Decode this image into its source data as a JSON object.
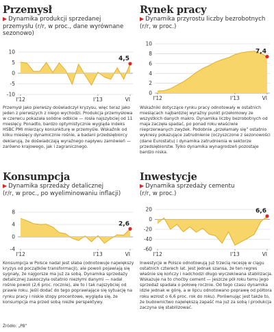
{
  "panels": [
    {
      "title": "Przemysł",
      "subtitle_lines": [
        "Dynamika produkcji sprzedanej",
        "przemysłu (r/r, w proc., dane wyrównane",
        "sezonowo)"
      ],
      "description": "Przemysł jako pierwszy doświadczył kryzysu, więc teraz jako jeden z pierwszych z niego wychodzi. Produkcja przemysłowa w czerwcu pokazała solidne odbicie — rosła najszybciej od 11 miesięcy. Ponadto, bardzo optymistycznie wygląda indeks HSBC PMI mierzący koniunkturę w przemyśle. Wskaźnik od kilku miesięcy dynamicznie rośnie, a badani przedsiębiorcy deklarują, że doświadczają wyraźnego napływu zamówień — zarówno krajowego, jak i zagranicznego.",
      "end_label": "4,5"
    },
    {
      "title": "Rynek pracy",
      "subtitle_lines": [
        "Dynamika przyrostu liczby bezrobotnych",
        "(r/r, w proc.)"
      ],
      "description": "Wskaźniki dotyczące rynku pracy odnotowały w ostatnich miesiącach najbardziej wyraźny punkt przełomowy ze wszystkich danych makro. Dynamika liczby bezrobotnych od maja zaczęła spadać, po ponad roku właściwie nieprzerwanych zwyżek. Podobnie „przełamały się” ostatnio wykresy pokazujące zatrudnienie (oczyszczone z sezonowości (dane Eurostatu) i dynamika zatrudnienia w sektorze przedsiębiorstw. Tylko dynamika wynagrodzeń pozostaje bardzo niska.",
      "end_label": "7,4"
    },
    {
      "title": "Konsumpcja",
      "subtitle_lines": [
        "Dynamika sprzedaży detalicznej",
        "(r/r, w proc., po wyeliminowaniu inflacji)"
      ],
      "description": "Konsumpcja w Polsce nadal jest słaba (odnotowuje największy kryzys od początków transformacji), ale powoli pojawiają się sygnały, że najgorsze ma już za sobą. Dynamika sprzedaży detalicznej zaskoczyła ostatnio niezłymi danymi — nadal rośnie powoli (2,6 proc. rocznie), ale to i tak najszybciej od prawie roku. Jeśli dodać do tego poprawiające się sytuację na rynku pracy i niskie stopy procentowe, wygląda się, że konsumpcja ma przed sobą niezłe perspektywy.",
      "source": "Źródło: „PB”",
      "end_label": "2,6"
    },
    {
      "title": "Inwestycje",
      "subtitle_lines": [
        "Dynamika sprzedaży cementu",
        "(r/r, w proc.)"
      ],
      "description": "Inwestycje w Polsce odnotowują już trzecią recesję w ciągu ostatnich czterech lat. Jest jednak szansa, że ten regres właśnie się kończy i nadchodzi długo wyczekiwana stabilizacja. Wskazuje na to choćby cement — jeszcze pół roku temu jego sprzedaż spadała o połowę rocznie. Od tego czasu dynamika idzie jednak w górę, a w lipcu odnotowano poprawę od półtora roku wzrost o 6,6 proc. rok do roku). Porównując jest także to, że budownictwo największą zapaść ma już za sobą i produkcja zaczyna się stabilizować.",
      "end_label": "6,6"
    }
  ],
  "chart_data": [
    {
      "type": "area",
      "ylim": [
        -10,
        10
      ],
      "yticks": [
        "10",
        "5",
        "0",
        "-5",
        "-10"
      ],
      "xtick_labels": [
        "I'12",
        "I'13",
        "VI"
      ],
      "colors": {
        "fill": "#f8d568",
        "line": "#e2a81b",
        "marker": "#d8262a"
      },
      "x": [
        "2012-01",
        "2012-02",
        "2012-03",
        "2012-04",
        "2012-05",
        "2012-06",
        "2012-07",
        "2012-08",
        "2012-09",
        "2012-10",
        "2012-11",
        "2012-12",
        "2013-01",
        "2013-02",
        "2013-03",
        "2013-04",
        "2013-05",
        "2013-06"
      ],
      "values": [
        5.2,
        4.8,
        0.9,
        1.0,
        5.1,
        0.4,
        4.9,
        1.3,
        -5.2,
        4.3,
        -0.9,
        -5.6,
        0.5,
        -1.8,
        -2.8,
        2.6,
        -2.8,
        4.5
      ]
    },
    {
      "type": "area",
      "ylim": [
        0,
        10
      ],
      "yticks": [
        "10",
        "8",
        "6",
        "4",
        "2",
        "0"
      ],
      "xtick_labels": [
        "I'12",
        "I'13",
        "VI"
      ],
      "colors": {
        "fill": "#f8d568",
        "line": "#e2a81b",
        "marker": "#d8262a"
      },
      "x": [
        "2012-01",
        "2012-02",
        "2012-03",
        "2012-04",
        "2012-05",
        "2012-06",
        "2012-07",
        "2012-08",
        "2012-09",
        "2012-10",
        "2012-11",
        "2012-12",
        "2013-01",
        "2013-02",
        "2013-03",
        "2013-04",
        "2013-05",
        "2013-06"
      ],
      "values": [
        0.4,
        0.5,
        0.9,
        1.6,
        2.3,
        3.2,
        4.2,
        5.0,
        5.6,
        6.3,
        6.8,
        7.2,
        7.8,
        8.2,
        8.4,
        8.5,
        8.1,
        7.4
      ]
    },
    {
      "type": "area",
      "ylim": [
        -4,
        8
      ],
      "yticks": [
        "8",
        "4",
        "0",
        "-4"
      ],
      "xtick_labels": [
        "I'12",
        "I'13",
        "VI"
      ],
      "colors": {
        "fill": "#f8d568",
        "line": "#e2a81b",
        "marker": "#d8262a"
      },
      "x": [
        "2012-01",
        "2012-02",
        "2012-03",
        "2012-04",
        "2012-05",
        "2012-06",
        "2012-07",
        "2012-08",
        "2012-09",
        "2012-10",
        "2012-11",
        "2012-12",
        "2013-01",
        "2013-02",
        "2013-03",
        "2013-04",
        "2013-05",
        "2013-06"
      ],
      "values": [
        6.0,
        5.2,
        4.3,
        4.0,
        4.1,
        3.2,
        1.4,
        1.0,
        -0.5,
        -1.2,
        0.3,
        -1.6,
        0.4,
        -2.1,
        -0.6,
        0.7,
        0.5,
        2.6
      ]
    },
    {
      "type": "area",
      "ylim": [
        -60,
        20
      ],
      "yticks": [
        "20",
        "0",
        "-20",
        "-40",
        "-60"
      ],
      "xtick_labels": [
        "I'12",
        "I'13",
        "VI"
      ],
      "colors": {
        "fill": "#f8d568",
        "line": "#e2a81b",
        "marker": "#d8262a"
      },
      "x": [
        "2012-01",
        "2012-02",
        "2012-03",
        "2012-04",
        "2012-05",
        "2012-06",
        "2012-07",
        "2012-08",
        "2012-09",
        "2012-10",
        "2012-11",
        "2012-12",
        "2013-01",
        "2013-02",
        "2013-03",
        "2013-04",
        "2013-05",
        "2013-06"
      ],
      "values": [
        -8,
        3,
        -20,
        -10,
        -25,
        -15,
        -26,
        -18,
        -30,
        -33,
        -48,
        -25,
        -52,
        -45,
        -38,
        -30,
        -5,
        6.6
      ]
    }
  ]
}
